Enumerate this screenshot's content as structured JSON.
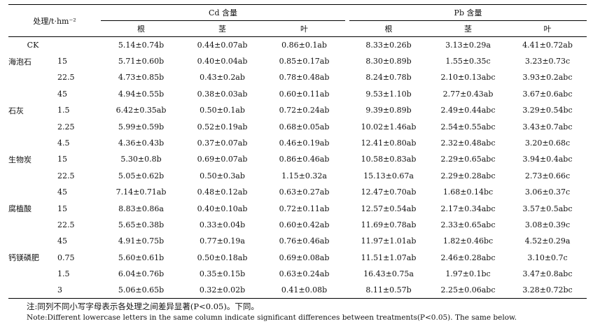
{
  "header": {
    "treatment": "处理/t·hm⁻²",
    "cd_group": "Cd 含量",
    "pb_group": "Pb 含量",
    "sub": [
      "根",
      "茎",
      "叶",
      "根",
      "茎",
      "叶"
    ]
  },
  "rows": [
    {
      "name": "CK",
      "rate": "",
      "v": [
        "5.14±0.74b",
        "0.44±0.07ab",
        "0.86±0.1ab",
        "8.33±0.26b",
        "3.13±0.29a",
        "4.41±0.72ab"
      ]
    },
    {
      "name": "海泡石",
      "rate": "15",
      "v": [
        "5.71±0.60b",
        "0.40±0.04ab",
        "0.85±0.17ab",
        "8.30±0.89b",
        "1.55±0.35c",
        "3.23±0.73c"
      ]
    },
    {
      "name": "",
      "rate": "22.5",
      "v": [
        "4.73±0.85b",
        "0.43±0.2ab",
        "0.78±0.48ab",
        "8.24±0.78b",
        "2.10±0.13abc",
        "3.93±0.2abc"
      ]
    },
    {
      "name": "",
      "rate": "45",
      "v": [
        "4.94±0.55b",
        "0.38±0.03ab",
        "0.60±0.11ab",
        "9.53±1.10b",
        "2.77±0.43ab",
        "3.67±0.6abc"
      ]
    },
    {
      "name": "石灰",
      "rate": "1.5",
      "v": [
        "6.42±0.35ab",
        "0.50±0.1ab",
        "0.72±0.24ab",
        "9.39±0.89b",
        "2.49±0.44abc",
        "3.29±0.54bc"
      ]
    },
    {
      "name": "",
      "rate": "2.25",
      "v": [
        "5.99±0.59b",
        "0.52±0.19ab",
        "0.68±0.05ab",
        "10.02±1.46ab",
        "2.54±0.55abc",
        "3.43±0.7abc"
      ]
    },
    {
      "name": "",
      "rate": "4.5",
      "v": [
        "4.36±0.43b",
        "0.37±0.07ab",
        "0.46±0.19ab",
        "12.41±0.80ab",
        "2.32±0.48abc",
        "3.20±0.68c"
      ]
    },
    {
      "name": "生物炭",
      "rate": "15",
      "v": [
        "5.30±0.8b",
        "0.69±0.07ab",
        "0.86±0.46ab",
        "10.58±0.83ab",
        "2.29±0.65abc",
        "3.94±0.4abc"
      ]
    },
    {
      "name": "",
      "rate": "22.5",
      "v": [
        "5.05±0.62b",
        "0.50±0.3ab",
        "1.15±0.32a",
        "15.13±0.67a",
        "2.29±0.28abc",
        "2.73±0.66c"
      ]
    },
    {
      "name": "",
      "rate": "45",
      "v": [
        "7.14±0.71ab",
        "0.48±0.12ab",
        "0.63±0.27ab",
        "12.47±0.70ab",
        "1.68±0.14bc",
        "3.06±0.37c"
      ]
    },
    {
      "name": "腐植酸",
      "rate": "15",
      "v": [
        "8.83±0.86a",
        "0.40±0.10ab",
        "0.72±0.11ab",
        "12.57±0.54ab",
        "2.17±0.34abc",
        "3.57±0.5abc"
      ]
    },
    {
      "name": "",
      "rate": "22.5",
      "v": [
        "5.65±0.38b",
        "0.33±0.04b",
        "0.60±0.42ab",
        "11.69±0.78ab",
        "2.33±0.65abc",
        "3.08±0.39c"
      ]
    },
    {
      "name": "",
      "rate": "45",
      "v": [
        "4.91±0.75b",
        "0.77±0.19a",
        "0.76±0.46ab",
        "11.97±1.01ab",
        "1.82±0.46bc",
        "4.52±0.29a"
      ]
    },
    {
      "name": "钙镁磷肥",
      "rate": "0.75",
      "v": [
        "5.60±0.61b",
        "0.50±0.18ab",
        "0.69±0.08ab",
        "11.51±1.07ab",
        "2.46±0.28abc",
        "3.10±0.7c"
      ]
    },
    {
      "name": "",
      "rate": "1.5",
      "v": [
        "6.04±0.76b",
        "0.35±0.15b",
        "0.63±0.24ab",
        "16.43±0.75a",
        "1.97±0.1bc",
        "3.47±0.8abc"
      ]
    },
    {
      "name": "",
      "rate": "3",
      "v": [
        "5.06±0.65b",
        "0.32±0.02b",
        "0.41±0.08b",
        "8.11±0.57b",
        "2.25±0.06abc",
        "3.28±0.72bc"
      ]
    }
  ],
  "notes": {
    "zh": "注:同列不同小写字母表示各处理之间差异显著(P<0.05)。下同。",
    "en": "Note:Different lowercase letters in the same column indicate significant differences between treatments(P<0.05). The same below."
  }
}
